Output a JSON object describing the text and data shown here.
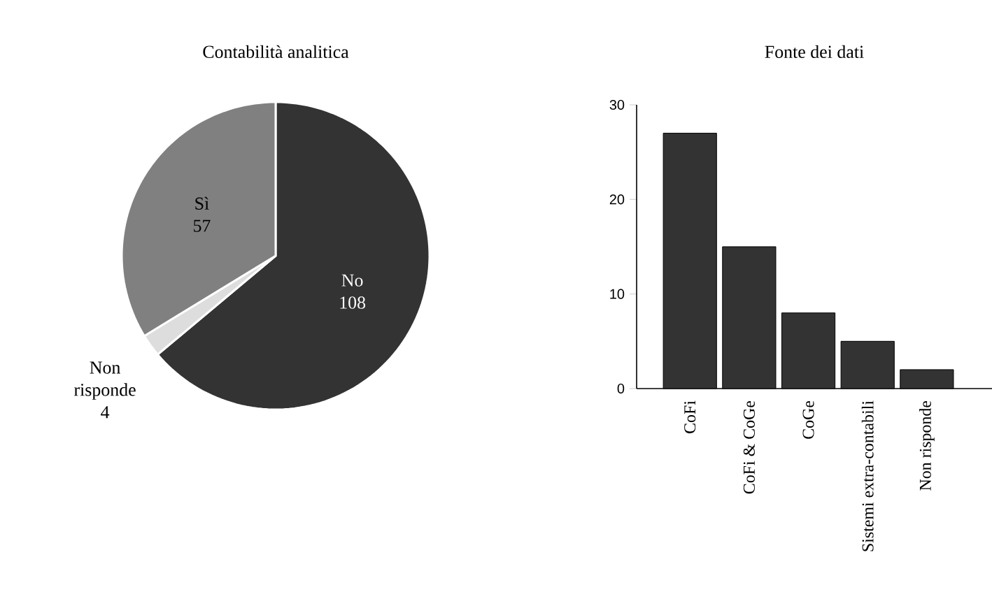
{
  "chart_data": [
    {
      "type": "pie",
      "title": "Contabilità analitica",
      "categories": [
        "No",
        "Non risponde",
        "Sì"
      ],
      "values": [
        108,
        4,
        57
      ],
      "colors": [
        "#333333",
        "#dddddd",
        "#808080"
      ],
      "data_labels": true
    },
    {
      "type": "bar",
      "title": "Fonte dei dati",
      "categories": [
        "CoFi",
        "CoFi & CoGe",
        "CoGe",
        "Sistemi extra-contabili",
        "Non risponde"
      ],
      "values": [
        27,
        15,
        8,
        5,
        2
      ],
      "color": "#333333",
      "ylim": [
        0,
        30
      ],
      "yticks": [
        0,
        10,
        20,
        30
      ]
    }
  ]
}
